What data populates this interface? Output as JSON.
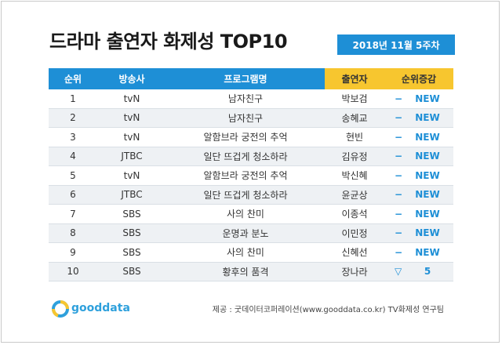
{
  "title": "드라마 출연자 화제성 TOP10",
  "date": "2018년  11월 5주차",
  "headers": [
    "순위",
    "방송사",
    "프로그램명",
    "출연자",
    "순위증감"
  ],
  "rows": [
    {
      "rank": "1",
      "network": "tvN",
      "program": "남자친구",
      "actor": "박보검",
      "change_sign": "−",
      "change": "NEW"
    },
    {
      "rank": "2",
      "network": "tvN",
      "program": "남자친구",
      "actor": "송혜교",
      "change_sign": "−",
      "change": "NEW"
    },
    {
      "rank": "3",
      "network": "tvN",
      "program": "알함브라 궁전의 추억",
      "actor": "현빈",
      "change_sign": "−",
      "change": "NEW"
    },
    {
      "rank": "4",
      "network": "JTBC",
      "program": "일단 뜨겁게 청소하라",
      "actor": "김유정",
      "change_sign": "−",
      "change": "NEW"
    },
    {
      "rank": "5",
      "network": "tvN",
      "program": "알함브라 궁전의 추억",
      "actor": "박신혜",
      "change_sign": "−",
      "change": "NEW"
    },
    {
      "rank": "6",
      "network": "JTBC",
      "program": "일단 뜨겁게 청소하라",
      "actor": "윤균상",
      "change_sign": "−",
      "change": "NEW"
    },
    {
      "rank": "7",
      "network": "SBS",
      "program": "사의 찬미",
      "actor": "이종석",
      "change_sign": "−",
      "change": "NEW"
    },
    {
      "rank": "8",
      "network": "SBS",
      "program": "운명과 분노",
      "actor": "이민정",
      "change_sign": "−",
      "change": "NEW"
    },
    {
      "rank": "9",
      "network": "SBS",
      "program": "사의 찬미",
      "actor": "신혜선",
      "change_sign": "−",
      "change": "NEW"
    },
    {
      "rank": "10",
      "network": "SBS",
      "program": "황후의 품격",
      "actor": "장나라",
      "change_sign": "▽",
      "change": "5"
    }
  ],
  "logo_text": "gooddata",
  "logo_icon": "gooddata-logo-icon",
  "credit": "제공 : 굿데이터코퍼레이션(www.gooddata.co.kr) TV화제성 연구팀",
  "colors": {
    "header_blue": "#1e8fd6",
    "header_gold": "#f7c62f",
    "row_alt": "#eef1f4",
    "accent": "#1e8fd6"
  }
}
